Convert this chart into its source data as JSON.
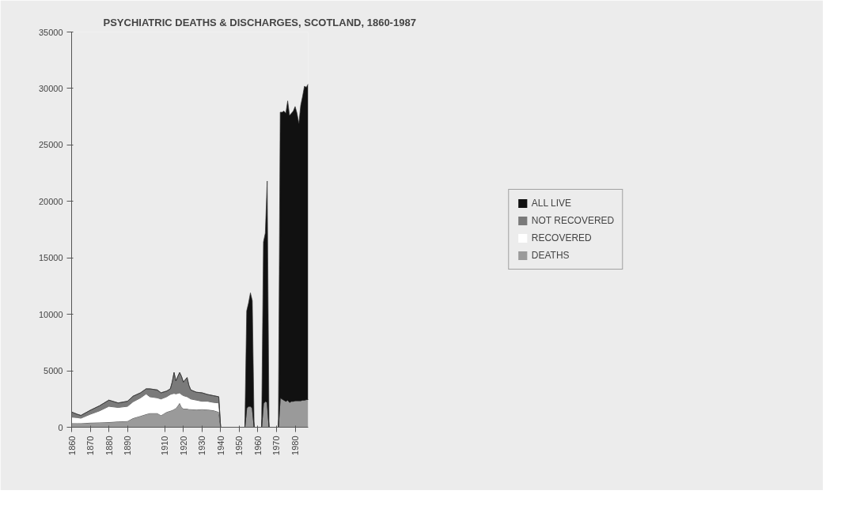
{
  "chart_data": {
    "type": "area",
    "stacked": true,
    "title": "PSYCHIATRIC DEATHS & DISCHARGES, SCOTLAND, 1860-1987",
    "x": [
      1860,
      1863,
      1865,
      1870,
      1875,
      1880,
      1885,
      1890,
      1893,
      1897,
      1900,
      1902,
      1906,
      1908,
      1911,
      1913,
      1914,
      1915,
      1916,
      1917,
      1918,
      1919,
      1920,
      1922,
      1923,
      1924,
      1927,
      1930,
      1933,
      1936,
      1939,
      1940,
      1953,
      1954,
      1955,
      1956,
      1957,
      1958,
      1962,
      1963,
      1964,
      1965,
      1966,
      1971,
      1972,
      1973,
      1974,
      1975,
      1976,
      1977,
      1978,
      1979,
      1980,
      1981,
      1982,
      1983,
      1984,
      1985,
      1986,
      1987
    ],
    "series": [
      {
        "name": "DEATHS",
        "color": "#9a9a9a",
        "values": [
          350,
          350,
          350,
          400,
          420,
          450,
          500,
          550,
          800,
          1000,
          1150,
          1250,
          1250,
          1050,
          1350,
          1450,
          1500,
          1600,
          1700,
          1900,
          2150,
          1800,
          1650,
          1650,
          1600,
          1600,
          1550,
          1600,
          1550,
          1500,
          1350,
          0,
          0,
          1700,
          1850,
          1850,
          1700,
          0,
          0,
          2100,
          2300,
          2200,
          0,
          0,
          2600,
          2500,
          2400,
          2300,
          2400,
          2200,
          2300,
          2300,
          2350,
          2350,
          2350,
          2350,
          2400,
          2400,
          2450,
          2450
        ]
      },
      {
        "name": "RECOVERED",
        "color": "#ffffff",
        "values": [
          550,
          500,
          450,
          750,
          1030,
          1400,
          1250,
          1300,
          1450,
          1600,
          1800,
          1450,
          1350,
          1450,
          1350,
          1450,
          1450,
          1400,
          1250,
          1100,
          900,
          1100,
          1150,
          1050,
          1000,
          900,
          850,
          700,
          750,
          700,
          800,
          0,
          0,
          0,
          0,
          0,
          0,
          0,
          0,
          0,
          0,
          0,
          0,
          0,
          0,
          0,
          0,
          0,
          0,
          0,
          0,
          0,
          0,
          0,
          0,
          0,
          0,
          0,
          0,
          0
        ]
      },
      {
        "name": "NOT RECOVERED",
        "color": "#7a7a7a",
        "values": [
          450,
          300,
          250,
          350,
          450,
          550,
          400,
          450,
          500,
          450,
          450,
          700,
          700,
          550,
          500,
          500,
          1050,
          1850,
          1150,
          1500,
          1800,
          1600,
          1200,
          1700,
          1100,
          800,
          700,
          750,
          600,
          600,
          550,
          0,
          0,
          0,
          0,
          0,
          0,
          0,
          0,
          0,
          0,
          0,
          0,
          0,
          0,
          0,
          0,
          0,
          0,
          0,
          0,
          0,
          0,
          0,
          0,
          0,
          0,
          0,
          0,
          0
        ]
      },
      {
        "name": "ALL LIVE",
        "color": "#111111",
        "values": [
          0,
          0,
          0,
          0,
          0,
          0,
          0,
          0,
          0,
          0,
          0,
          0,
          0,
          0,
          0,
          0,
          0,
          0,
          0,
          0,
          0,
          0,
          0,
          0,
          0,
          0,
          0,
          0,
          0,
          0,
          0,
          0,
          0,
          8600,
          9150,
          10050,
          9500,
          0,
          0,
          14300,
          14900,
          19600,
          0,
          0,
          25300,
          25400,
          25600,
          25500,
          26500,
          25400,
          25500,
          25700,
          26050,
          25450,
          24550,
          26150,
          26900,
          27800,
          27650,
          27950
        ]
      }
    ],
    "xlim": [
      1860,
      1987
    ],
    "xticks": [
      1860,
      1870,
      1880,
      1890,
      1910,
      1920,
      1930,
      1940,
      1950,
      1960,
      1970,
      1980
    ],
    "ylim": [
      0,
      35000
    ],
    "yticks": [
      0,
      5000,
      10000,
      15000,
      20000,
      25000,
      30000,
      35000
    ],
    "grid": false,
    "legend": "right"
  }
}
